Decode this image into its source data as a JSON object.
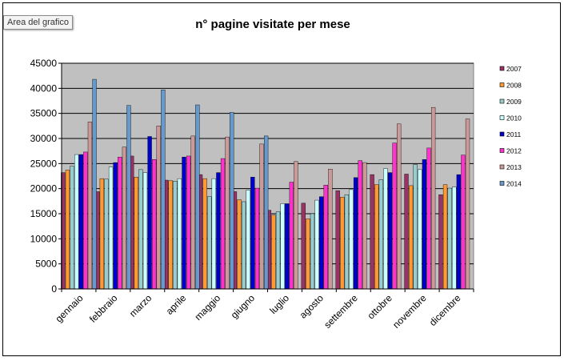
{
  "tooltip": "Area del grafico",
  "chart_data": {
    "type": "bar",
    "title": "n° pagine visitate per mese",
    "xlabel": "",
    "ylabel": "",
    "ylim": [
      0,
      45000
    ],
    "yticks": [
      0,
      5000,
      10000,
      15000,
      20000,
      25000,
      30000,
      35000,
      40000,
      45000
    ],
    "grid": true,
    "legend_position": "right",
    "categories": [
      "gennaio",
      "febbraio",
      "marzo",
      "aprile",
      "maggio",
      "giugno",
      "luglio",
      "agosto",
      "settembre",
      "ottobre",
      "novembre",
      "dicembre"
    ],
    "series": [
      {
        "name": "2007",
        "color": "#993366",
        "values": [
          23200,
          19400,
          26500,
          21700,
          22800,
          19400,
          15700,
          17100,
          19600,
          22800,
          22900,
          18800
        ]
      },
      {
        "name": "2008",
        "color": "#ff9933",
        "values": [
          23700,
          22000,
          22300,
          21600,
          22000,
          17800,
          14700,
          14000,
          18300,
          20800,
          20600,
          20800
        ]
      },
      {
        "name": "2009",
        "color": "#99cccc",
        "values": [
          24500,
          21900,
          23800,
          21500,
          18400,
          17400,
          15400,
          15000,
          18800,
          21800,
          24800,
          20100
        ]
      },
      {
        "name": "2010",
        "color": "#ccffff",
        "values": [
          26800,
          24300,
          23200,
          22000,
          22000,
          19700,
          17000,
          17700,
          19800,
          24000,
          23800,
          20300
        ]
      },
      {
        "name": "2011",
        "color": "#0000cc",
        "values": [
          26800,
          25200,
          30400,
          26300,
          23200,
          22300,
          17000,
          18400,
          22200,
          23200,
          25800,
          22800
        ]
      },
      {
        "name": "2012",
        "color": "#ff33cc",
        "values": [
          27300,
          26300,
          25800,
          26500,
          26000,
          20100,
          21300,
          20700,
          25600,
          29100,
          28100,
          26700
        ]
      },
      {
        "name": "2013",
        "color": "#cc9999",
        "values": [
          33300,
          28300,
          32500,
          30500,
          30300,
          28900,
          25400,
          23900,
          25200,
          32900,
          36200,
          33900
        ]
      },
      {
        "name": "2014",
        "color": "#6699cc",
        "values": [
          41800,
          36600,
          39700,
          36700,
          35200,
          30500,
          null,
          null,
          null,
          null,
          null,
          null
        ]
      }
    ]
  }
}
